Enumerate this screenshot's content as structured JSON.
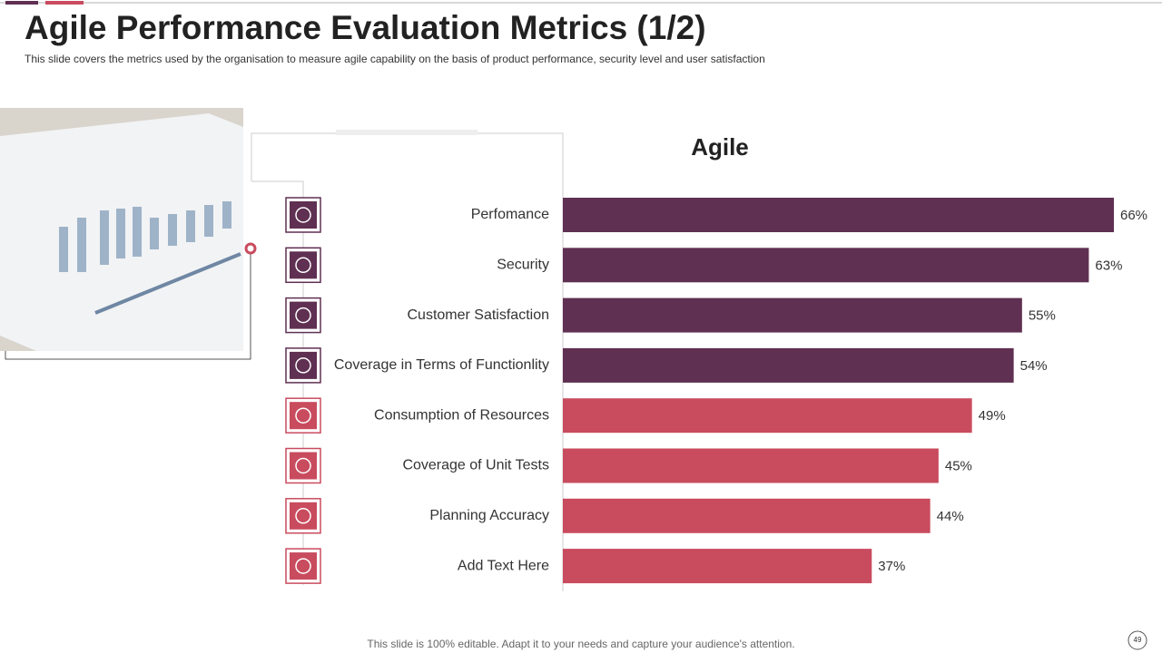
{
  "header": {
    "title": "Agile Performance Evaluation Metrics (1/2)",
    "subtitle": "This slide covers the metrics used by the organisation to measure agile capability on the basis of product performance, security level and user satisfaction"
  },
  "chart_data": {
    "type": "bar",
    "orientation": "horizontal",
    "title": "Agile",
    "categories": [
      "Perfomance",
      "Security",
      "Customer Satisfaction",
      "Coverage in Terms of Functionlity",
      "Consumption of Resources",
      "Coverage of Unit Tests",
      "Planning Accuracy",
      "Add Text Here"
    ],
    "values": [
      66,
      63,
      55,
      54,
      49,
      45,
      44,
      37
    ],
    "value_labels": [
      "66%",
      "63%",
      "55%",
      "54%",
      "49%",
      "45%",
      "44%",
      "37%"
    ],
    "colors": [
      "#5f3052",
      "#5f3052",
      "#5f3052",
      "#5f3052",
      "#c94b5e",
      "#c94b5e",
      "#c94b5e",
      "#c94b5e"
    ]
  },
  "footer": {
    "note": "This slide is 100% editable. Adapt it to your needs and capture your audience's attention.",
    "page": "49"
  }
}
